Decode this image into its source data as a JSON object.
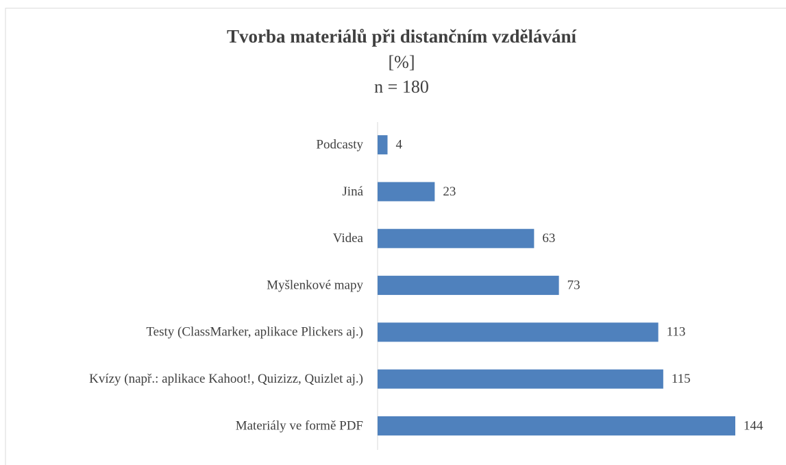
{
  "chart_data": {
    "type": "bar",
    "orientation": "horizontal",
    "title": "Tvorba materiálů při distančním vzdělávání",
    "subtitle": [
      "[%]",
      "n = 180"
    ],
    "categories": [
      "Podcasty",
      "Jiná",
      "Videa",
      "Myšlenkové mapy",
      "Testy (ClassMarker, aplikace Plickers aj.)",
      "Kvízy (např.: aplikace Kahoot!, Quizizz, Quizlet aj.)",
      "Materiály ve formě PDF"
    ],
    "values": [
      4,
      23,
      63,
      73,
      113,
      115,
      144
    ],
    "color": "#4f81bd"
  }
}
